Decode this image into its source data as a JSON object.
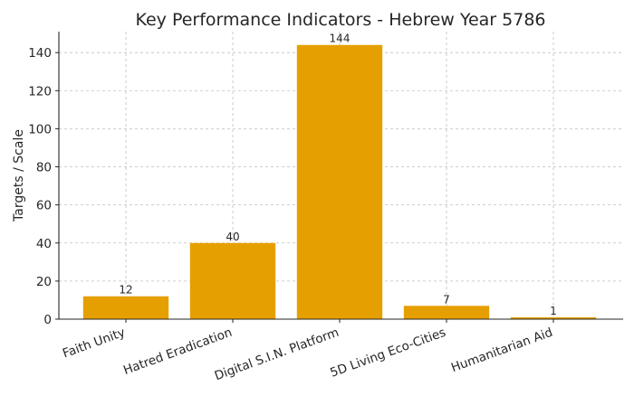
{
  "chart_data": {
    "type": "bar",
    "title": "Key Performance Indicators - Hebrew Year 5786",
    "xlabel": "",
    "ylabel": "Targets / Scale",
    "categories": [
      "Faith Unity",
      "Hatred Eradication",
      "Digital S.I.N. Platform",
      "5D Living Eco-Cities",
      "Humanitarian Aid"
    ],
    "values": [
      12,
      40,
      144,
      7,
      1
    ],
    "data_labels": [
      "12",
      "40",
      "144",
      "7",
      "1"
    ],
    "yticks": [
      0,
      20,
      40,
      60,
      80,
      100,
      120,
      140
    ],
    "ylim": [
      0,
      151
    ],
    "grid": true,
    "bar_color": "#e69f00",
    "x_tick_rotation": 20
  }
}
